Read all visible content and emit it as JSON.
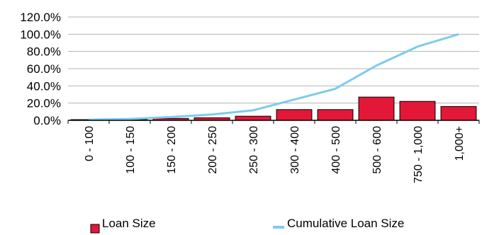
{
  "chart_data": {
    "type": "bar",
    "categories": [
      "0 - 100",
      "100 - 150",
      "150 - 200",
      "200 - 250",
      "250 - 300",
      "300 - 400",
      "400 - 500",
      "500 - 600",
      "750 - 1,000",
      "1,000+"
    ],
    "series": [
      {
        "name": "Loan Size",
        "type": "bar",
        "color": "#e31837",
        "values": [
          0.8,
          0.8,
          2.2,
          3.0,
          4.8,
          12.5,
          12.5,
          27.0,
          22.0,
          16.0
        ]
      },
      {
        "name": "Cumulative Loan Size",
        "type": "line",
        "color": "#7ecbec",
        "values": [
          0.8,
          1.6,
          3.8,
          6.8,
          11.6,
          24.1,
          36.6,
          63.6,
          85.6,
          100.0
        ]
      }
    ],
    "ylim": [
      0,
      120
    ],
    "yticks": [
      "0.0%",
      "20.0%",
      "40.0%",
      "60.0%",
      "80.0%",
      "100.0%",
      "120.0%"
    ],
    "grid": true,
    "legend": "bottom"
  }
}
